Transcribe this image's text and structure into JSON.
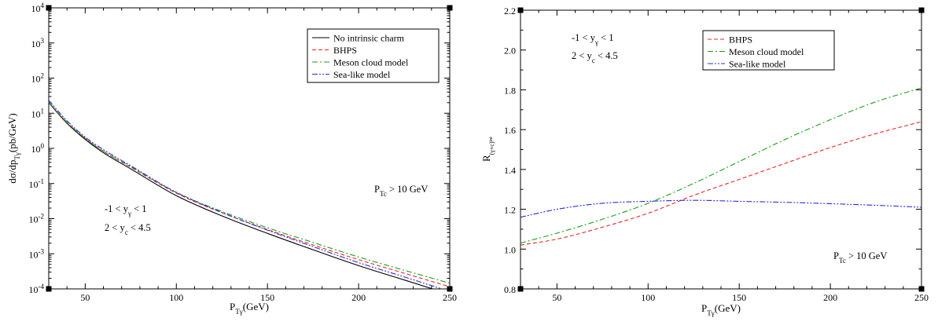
{
  "chart_data": [
    {
      "type": "line",
      "log_y": true,
      "xlim": [
        30,
        250
      ],
      "ylim": [
        0.0001,
        10000
      ],
      "xticks": [
        50,
        100,
        150,
        200,
        250
      ],
      "ytick_exponents": [
        -4,
        -3,
        -2,
        -1,
        0,
        1,
        2,
        3,
        4
      ],
      "ytick_base": "10",
      "xlabel": "P",
      "xlabel_sub": "Tγ",
      "xlabel_unit": "(GeV)",
      "ylabel": "dσ/dp",
      "ylabel_sub": "Tγ",
      "ylabel_unit": "(pb/GeV)",
      "legend_position": "top-right",
      "annotations": {
        "y_gamma": {
          "pre": "-1 < y",
          "sub": "γ",
          "post": " < 1"
        },
        "y_c": {
          "pre": "2 < y",
          "sub": "c",
          "post": " < 4.5"
        },
        "ptc": {
          "pre": "P",
          "sub": "Tc",
          "post": " > 10 GeV"
        }
      },
      "x": [
        30,
        40,
        50,
        60,
        75,
        100,
        125,
        150,
        175,
        200,
        225,
        250
      ],
      "series": [
        {
          "name": "No intrinsic charm",
          "color": "#000000",
          "dash": "solid",
          "values": [
            20,
            5.2,
            1.8,
            0.75,
            0.26,
            0.045,
            0.012,
            0.0038,
            0.0013,
            0.00046,
            0.00018,
            7e-05
          ]
        },
        {
          "name": "BHPS",
          "color": "#e8262a",
          "dash": "dashed",
          "values": [
            20.6,
            5.5,
            1.92,
            0.82,
            0.29,
            0.053,
            0.0147,
            0.0049,
            0.00178,
            0.00068,
            0.00028,
            0.000115
          ]
        },
        {
          "name": "Meson cloud model",
          "color": "#1a9e1a",
          "dash": "dashdot",
          "values": [
            20.6,
            5.5,
            1.94,
            0.83,
            0.3,
            0.056,
            0.016,
            0.0055,
            0.0021,
            0.00081,
            0.00034,
            0.000145
          ]
        },
        {
          "name": "Sea-like model",
          "color": "#2a2ad8",
          "dash": "dashdotdot",
          "values": [
            23.2,
            6.1,
            2.1,
            0.92,
            0.32,
            0.056,
            0.015,
            0.0047,
            0.0016,
            0.00056,
            0.00022,
            8.5e-05
          ]
        }
      ]
    },
    {
      "type": "line",
      "xlim": [
        30,
        250
      ],
      "ylim": [
        0.8,
        2.2
      ],
      "xticks": [
        50,
        100,
        150,
        200,
        250
      ],
      "yticks": [
        "0.8",
        "1.0",
        "1.2",
        "1.4",
        "1.6",
        "1.8",
        "2.0",
        "2.2"
      ],
      "xlabel": "P",
      "xlabel_sub": "Tγ",
      "xlabel_unit": "(GeV)",
      "ylabel": "R",
      "ylabel_sub": "(γ+c)",
      "ylabel_subsub": "int",
      "legend_position": "top-center",
      "annotations": {
        "y_gamma": {
          "pre": "-1 < y",
          "sub": "γ",
          "post": " < 1"
        },
        "y_c": {
          "pre": "2 < y",
          "sub": "c",
          "post": " < 4.5"
        },
        "ptc": {
          "pre": "P",
          "sub": "Tc",
          "post": " > 10 GeV"
        }
      },
      "x": [
        30,
        50,
        75,
        100,
        125,
        150,
        175,
        200,
        225,
        250
      ],
      "series": [
        {
          "name": "BHPS",
          "color": "#e8262a",
          "dash": "dashed",
          "values": [
            1.02,
            1.05,
            1.11,
            1.18,
            1.27,
            1.35,
            1.43,
            1.51,
            1.58,
            1.64
          ]
        },
        {
          "name": "Meson cloud model",
          "color": "#1a9e1a",
          "dash": "dashdot",
          "values": [
            1.03,
            1.08,
            1.15,
            1.23,
            1.33,
            1.44,
            1.55,
            1.65,
            1.74,
            1.81
          ]
        },
        {
          "name": "Sea-like model",
          "color": "#2a2ad8",
          "dash": "dashdotdot",
          "values": [
            1.16,
            1.2,
            1.23,
            1.24,
            1.245,
            1.24,
            1.235,
            1.228,
            1.22,
            1.21
          ]
        }
      ]
    }
  ]
}
